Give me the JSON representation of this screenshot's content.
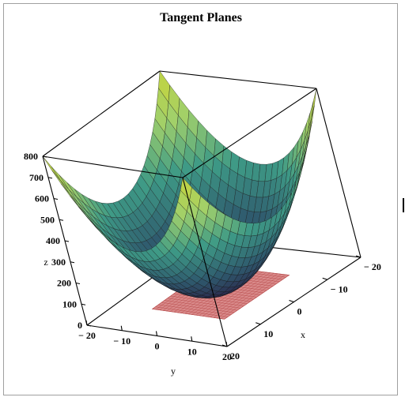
{
  "chart_data": {
    "type": "surface3d",
    "title": "Tangent Planes",
    "xlabel": "x",
    "ylabel": "y",
    "zlabel": "z",
    "xlim": [
      -20,
      20
    ],
    "ylim": [
      -20,
      20
    ],
    "zlim": [
      0,
      800
    ],
    "x_ticks": [
      "-20",
      "-10",
      "0",
      "10",
      "20"
    ],
    "y_ticks": [
      "-20",
      "-10",
      "0",
      "10",
      "20"
    ],
    "z_ticks": [
      "0",
      "100",
      "200",
      "300",
      "400",
      "500",
      "600",
      "700",
      "800"
    ],
    "surface": {
      "function": "z = x^2 + y^2",
      "corner_values": [
        800,
        800,
        800,
        800
      ],
      "minimum": {
        "x": 0,
        "y": 0,
        "z": 0
      },
      "colormap": [
        "#2a1f46",
        "#2f5b6e",
        "#3e9a86",
        "#9fd06c",
        "#c9d43a"
      ]
    },
    "tangent_plane": {
      "z": 0,
      "color": "#d98a8a",
      "grid_color": "#b44444"
    }
  }
}
